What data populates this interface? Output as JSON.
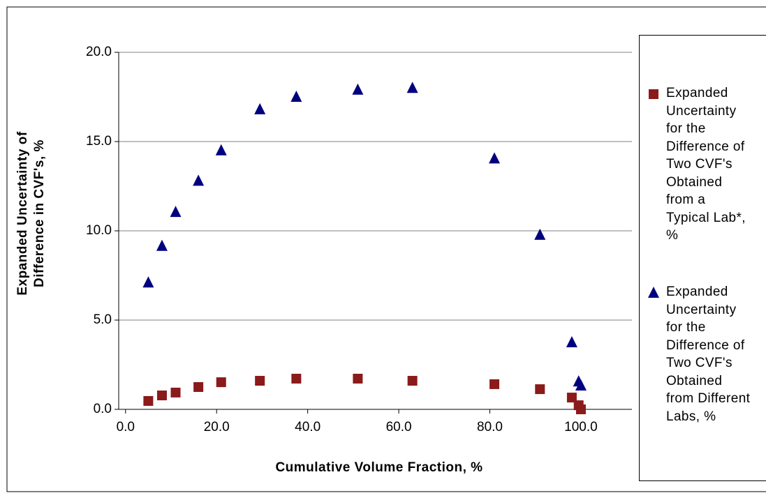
{
  "chart_data": {
    "type": "scatter",
    "x_label": "Cumulative Volume Fraction, %",
    "y_label": "Expanded Uncertainty of Difference in CVF's, %",
    "xlim": [
      -1.5,
      111.2
    ],
    "ylim": [
      0,
      20
    ],
    "xticks": [
      {
        "value": 0,
        "label": "0.0"
      },
      {
        "value": 20,
        "label": "20.0"
      },
      {
        "value": 40,
        "label": "40.0"
      },
      {
        "value": 60,
        "label": "60.0"
      },
      {
        "value": 80,
        "label": "80.0"
      },
      {
        "value": 100,
        "label": "100.0"
      }
    ],
    "yticks": [
      {
        "value": 0,
        "label": "0.0"
      },
      {
        "value": 5,
        "label": "5.0"
      },
      {
        "value": 10,
        "label": "10.0"
      },
      {
        "value": 15,
        "label": "15.0"
      },
      {
        "value": 20,
        "label": "20.0"
      }
    ],
    "grid": true,
    "legend": "right",
    "series": [
      {
        "name": "Expanded Uncertainty for the Difference of Two CVF's Obtained from a Typical Lab*, %",
        "color": "#8b1a1a",
        "marker": "square",
        "x": [
          5,
          8,
          11,
          16,
          21,
          29.5,
          37.5,
          51,
          63,
          81,
          91,
          98,
          99.5,
          100
        ],
        "values": [
          0.47,
          0.78,
          0.94,
          1.25,
          1.52,
          1.6,
          1.72,
          1.72,
          1.6,
          1.41,
          1.13,
          0.66,
          0.23,
          0.0
        ]
      },
      {
        "name": "Expanded Uncertainty for the Difference of Two CVF's Obtained from Different Labs, %",
        "color": "#000080",
        "marker": "triangle",
        "x": [
          5,
          8,
          11,
          16,
          21,
          29.5,
          37.5,
          51,
          63,
          81,
          91,
          98,
          99.5,
          100
        ],
        "values": [
          7.1,
          9.15,
          11.05,
          12.8,
          14.5,
          16.8,
          17.5,
          17.9,
          18.0,
          14.05,
          9.77,
          3.75,
          1.56,
          1.33
        ]
      }
    ]
  }
}
